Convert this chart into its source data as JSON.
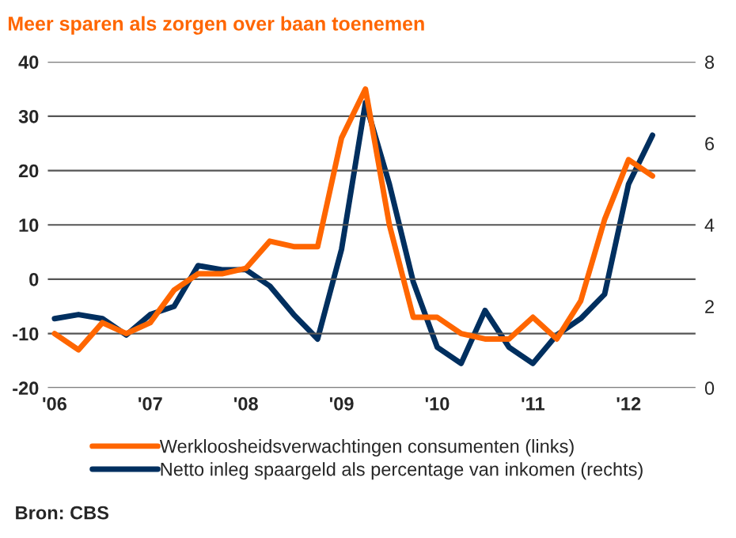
{
  "chart_data": {
    "type": "line",
    "title": "Meer sparen als zorgen over baan toenemen",
    "x": [
      2006.0,
      2006.25,
      2006.5,
      2006.75,
      2007.0,
      2007.25,
      2007.5,
      2007.75,
      2008.0,
      2008.25,
      2008.5,
      2008.75,
      2009.0,
      2009.25,
      2009.5,
      2009.75,
      2010.0,
      2010.25,
      2010.5,
      2010.75,
      2011.0,
      2011.25,
      2011.5,
      2011.75,
      2012.0,
      2012.25
    ],
    "series": [
      {
        "name": "Werkloosheidsverwachtingen consumenten (links)",
        "color": "#ff6600",
        "values": [
          -10,
          -13,
          -8,
          -10,
          -8,
          -2,
          1,
          1,
          2,
          7,
          6,
          6,
          26,
          35,
          10,
          -7,
          -7,
          -10,
          -11,
          -11,
          -7,
          -11,
          -4,
          11,
          22,
          19
        ]
      },
      {
        "name": "Netto inleg spaargeld als percentage van inkomen (rechts)",
        "color": "#002f5f",
        "axis": "y2",
        "values": [
          1.7,
          1.8,
          1.7,
          1.3,
          1.8,
          2.0,
          3.0,
          2.9,
          2.9,
          2.5,
          1.8,
          1.2,
          3.4,
          7.0,
          5.0,
          2.6,
          1.0,
          0.6,
          1.9,
          1.0,
          0.6,
          1.3,
          1.7,
          2.3,
          5.0,
          6.2
        ]
      }
    ],
    "xlim": [
      2005.93,
      2012.7
    ],
    "xticks": [
      {
        "value": 2006,
        "label": "'06"
      },
      {
        "value": 2007,
        "label": "'07"
      },
      {
        "value": 2008,
        "label": "'08"
      },
      {
        "value": 2009,
        "label": "'09"
      },
      {
        "value": 2010,
        "label": "'10"
      },
      {
        "value": 2011,
        "label": "'11"
      },
      {
        "value": 2012,
        "label": "'12"
      }
    ],
    "ylim": [
      -20,
      40
    ],
    "yticks": [
      -20,
      -10,
      0,
      10,
      20,
      30,
      40
    ],
    "y2lim": [
      0,
      8
    ],
    "y2ticks": [
      0,
      2,
      4,
      6,
      8
    ],
    "grid": "y",
    "legend": "bottom",
    "annotations": [
      "Bron: CBS"
    ]
  }
}
